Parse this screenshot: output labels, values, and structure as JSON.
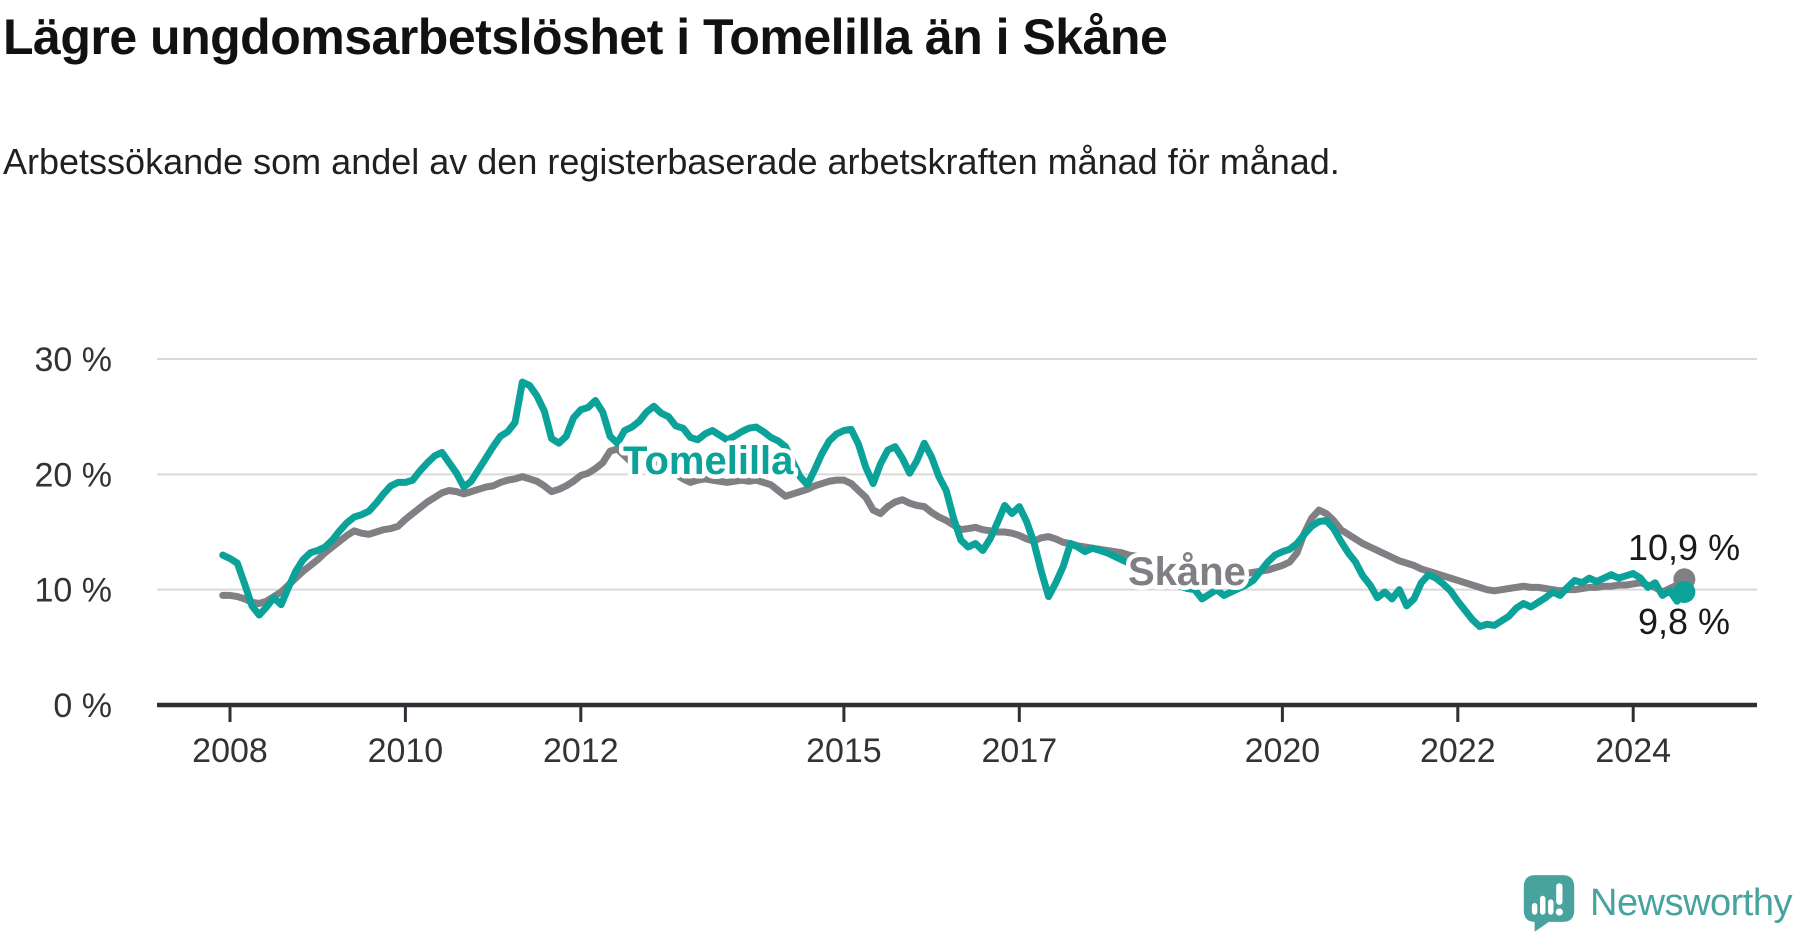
{
  "header": {
    "title": "Lägre ungdomsarbetslöshet i Tomelilla än i Skåne",
    "subtitle": "Arbetssökande som andel av den registerbaserade arbetskraften månad för månad."
  },
  "chart_data": {
    "type": "line",
    "title": "Lägre ungdomsarbetslöshet i Tomelilla än i Skåne",
    "subtitle": "Arbetssökande som andel av den registerbaserade arbetskraften månad för månad.",
    "x_start_year_fraction": 2007.9167,
    "x_step_months": 1,
    "x_tick_years": [
      2008,
      2010,
      2012,
      2015,
      2017,
      2020,
      2022,
      2024
    ],
    "y_axis": {
      "tick_values": [
        0,
        10,
        20,
        30
      ],
      "tick_labels": [
        "0 %",
        "10 %",
        "20 %",
        "30 %"
      ]
    },
    "ylim": [
      0,
      30
    ],
    "grid": true,
    "grid_color": "#d9d9d9",
    "axis_color": "#2f3033",
    "series": [
      {
        "name": "Tomelilla",
        "color": "#0ba29a",
        "end_label": "9,8 %",
        "end_value": 9.8,
        "values": [
          13.0,
          12.7,
          12.3,
          10.5,
          8.6,
          7.8,
          8.5,
          9.3,
          8.7,
          10.2,
          11.6,
          12.6,
          13.2,
          13.4,
          13.7,
          14.3,
          15.1,
          15.8,
          16.3,
          16.5,
          16.8,
          17.5,
          18.3,
          19.0,
          19.3,
          19.3,
          19.5,
          20.3,
          21.0,
          21.6,
          21.9,
          21.0,
          20.1,
          18.9,
          19.4,
          20.4,
          21.4,
          22.4,
          23.3,
          23.7,
          24.5,
          28.0,
          27.7,
          26.8,
          25.5,
          23.1,
          22.7,
          23.3,
          24.9,
          25.6,
          25.8,
          26.4,
          25.4,
          23.3,
          22.7,
          23.8,
          24.1,
          24.6,
          25.4,
          25.9,
          25.3,
          25.0,
          24.2,
          24.0,
          23.2,
          23.0,
          23.5,
          23.8,
          23.4,
          23.0,
          23.3,
          23.7,
          24.0,
          24.1,
          23.7,
          23.2,
          22.9,
          22.4,
          21.1,
          19.8,
          19.1,
          20.4,
          21.8,
          22.9,
          23.5,
          23.8,
          23.9,
          22.6,
          20.6,
          19.2,
          20.9,
          22.1,
          22.4,
          21.4,
          20.1,
          21.2,
          22.7,
          21.5,
          19.8,
          18.6,
          16.2,
          14.3,
          13.7,
          14.0,
          13.4,
          14.4,
          15.8,
          17.3,
          16.6,
          17.2,
          15.9,
          14.1,
          11.6,
          9.4,
          10.6,
          12.0,
          14.0,
          13.7,
          13.3,
          13.6,
          13.4,
          13.2,
          12.9,
          12.6,
          12.3,
          12.0,
          11.6,
          11.4,
          11.0,
          10.7,
          10.5,
          10.3,
          10.1,
          10.0,
          9.2,
          9.6,
          10.0,
          9.5,
          9.8,
          10.1,
          10.4,
          10.8,
          11.6,
          12.4,
          13.0,
          13.3,
          13.5,
          14.0,
          14.8,
          15.5,
          15.9,
          16.0,
          15.3,
          14.2,
          13.2,
          12.4,
          11.2,
          10.4,
          9.3,
          9.8,
          9.2,
          10.0,
          8.6,
          9.2,
          10.6,
          11.3,
          11.0,
          10.5,
          9.9,
          9.0,
          8.2,
          7.4,
          6.8,
          7.0,
          6.9,
          7.3,
          7.7,
          8.4,
          8.8,
          8.5,
          8.9,
          9.3,
          9.8,
          9.5,
          10.2,
          10.8,
          10.6,
          11.0,
          10.7,
          11.0,
          11.3,
          11.0,
          11.2,
          11.4,
          11.0,
          10.2,
          10.6,
          9.5,
          9.9,
          9.0,
          9.8
        ]
      },
      {
        "name": "Skåne",
        "color": "#808084",
        "end_label": "10,9 %",
        "end_value": 10.9,
        "values": [
          9.5,
          9.5,
          9.4,
          9.2,
          8.9,
          8.8,
          9.0,
          9.4,
          9.8,
          10.4,
          11.0,
          11.6,
          12.1,
          12.6,
          13.2,
          13.7,
          14.2,
          14.7,
          15.1,
          14.9,
          14.8,
          15.0,
          15.2,
          15.3,
          15.5,
          16.1,
          16.6,
          17.1,
          17.6,
          18.0,
          18.4,
          18.6,
          18.5,
          18.3,
          18.5,
          18.7,
          18.9,
          19.0,
          19.3,
          19.5,
          19.6,
          19.8,
          19.6,
          19.4,
          19.0,
          18.5,
          18.7,
          19.0,
          19.4,
          19.9,
          20.1,
          20.5,
          21.0,
          22.0,
          22.2,
          21.6,
          21.0,
          20.7,
          20.9,
          21.0,
          20.7,
          20.3,
          20.0,
          19.6,
          19.3,
          19.5,
          19.6,
          19.5,
          19.4,
          19.3,
          19.4,
          19.5,
          19.4,
          19.5,
          19.3,
          19.1,
          18.6,
          18.1,
          18.3,
          18.5,
          18.7,
          19.0,
          19.2,
          19.4,
          19.5,
          19.5,
          19.2,
          18.6,
          18.0,
          16.9,
          16.6,
          17.2,
          17.6,
          17.8,
          17.5,
          17.3,
          17.2,
          16.7,
          16.3,
          16.0,
          15.6,
          15.2,
          15.3,
          15.4,
          15.2,
          15.1,
          15.0,
          15.0,
          14.9,
          14.7,
          14.4,
          14.2,
          14.5,
          14.6,
          14.4,
          14.1,
          14.0,
          13.8,
          13.7,
          13.6,
          13.5,
          13.4,
          13.3,
          13.2,
          13.0,
          12.9,
          12.7,
          12.6,
          12.4,
          12.3,
          12.1,
          12.0,
          11.9,
          11.8,
          11.7,
          11.6,
          11.5,
          11.5,
          11.4,
          11.3,
          11.4,
          11.5,
          11.6,
          11.7,
          11.9,
          12.1,
          12.4,
          13.2,
          14.9,
          16.2,
          16.9,
          16.6,
          16.0,
          15.2,
          14.8,
          14.4,
          14.0,
          13.7,
          13.4,
          13.1,
          12.8,
          12.5,
          12.3,
          12.1,
          11.8,
          11.6,
          11.4,
          11.2,
          11.0,
          10.8,
          10.6,
          10.4,
          10.2,
          10.0,
          9.9,
          10.0,
          10.1,
          10.2,
          10.3,
          10.2,
          10.2,
          10.1,
          10.0,
          9.9,
          10.0,
          10.0,
          10.1,
          10.2,
          10.2,
          10.3,
          10.3,
          10.4,
          10.4,
          10.5,
          10.6,
          10.4,
          10.2,
          9.8,
          10.1,
          10.4,
          10.9
        ]
      }
    ]
  },
  "footer": {
    "brand": "Newsworthy",
    "brand_color": "#48a39f"
  }
}
